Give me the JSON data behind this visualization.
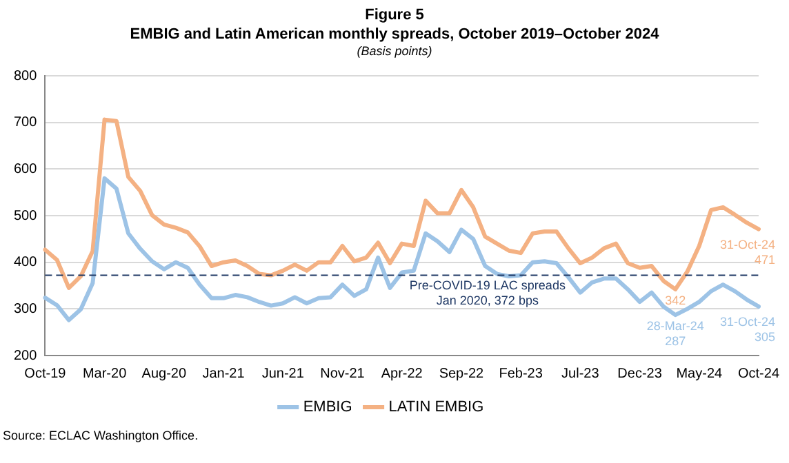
{
  "chart_data": {
    "type": "line",
    "title": "Figure 5\nEMBIG and Latin American monthly spreads, October 2019–October 2024",
    "subtitle": "(Basis points)",
    "categories": [
      "Oct-19",
      null,
      null,
      null,
      null,
      "Mar-20",
      null,
      null,
      null,
      null,
      "Aug-20",
      null,
      null,
      null,
      null,
      "Jan-21",
      null,
      null,
      null,
      null,
      "Jun-21",
      null,
      null,
      null,
      null,
      "Nov-21",
      null,
      null,
      null,
      null,
      "Apr-22",
      null,
      null,
      null,
      null,
      "Sep-22",
      null,
      null,
      null,
      null,
      "Feb-23",
      null,
      null,
      null,
      null,
      "Jul-23",
      null,
      null,
      null,
      null,
      "Dec-23",
      null,
      null,
      null,
      null,
      "May-24",
      null,
      null,
      null,
      null,
      "Oct-24"
    ],
    "series": [
      {
        "name": "EMBIG",
        "color": "#9dc3e6",
        "values": [
          324,
          308,
          276,
          299,
          355,
          580,
          558,
          462,
          429,
          402,
          385,
          400,
          388,
          352,
          323,
          323,
          330,
          325,
          315,
          307,
          312,
          325,
          312,
          323,
          325,
          352,
          328,
          342,
          410,
          345,
          378,
          382,
          462,
          445,
          422,
          470,
          450,
          392,
          375,
          370,
          372,
          400,
          402,
          398,
          368,
          335,
          357,
          365,
          365,
          342,
          315,
          335,
          305,
          287,
          300,
          315,
          338,
          352,
          338,
          320,
          305
        ],
        "value_labels": [
          null,
          null,
          null,
          null,
          null,
          null,
          null,
          null,
          null,
          null,
          null,
          null,
          null,
          null,
          null,
          null,
          null,
          null,
          null,
          null,
          null,
          null,
          null,
          null,
          null,
          null,
          null,
          null,
          null,
          null,
          null,
          null,
          null,
          null,
          null,
          null,
          null,
          null,
          null,
          null,
          null,
          null,
          null,
          null,
          null,
          null,
          null,
          null,
          null,
          null,
          null,
          null,
          null,
          "28-Mar-24\n287",
          null,
          null,
          null,
          null,
          null,
          null,
          "31-Oct-24\n305"
        ]
      },
      {
        "name": "LATIN EMBIG",
        "color": "#f4b183",
        "values": [
          427,
          405,
          345,
          370,
          424,
          706,
          703,
          583,
          553,
          501,
          481,
          474,
          464,
          434,
          392,
          400,
          404,
          392,
          375,
          372,
          382,
          395,
          382,
          400,
          400,
          435,
          402,
          410,
          442,
          398,
          440,
          435,
          532,
          505,
          505,
          555,
          518,
          455,
          440,
          425,
          420,
          462,
          466,
          466,
          430,
          398,
          410,
          430,
          440,
          398,
          388,
          392,
          360,
          342,
          380,
          435,
          512,
          518,
          502,
          485,
          471
        ],
        "value_labels": [
          null,
          null,
          null,
          null,
          null,
          null,
          null,
          null,
          null,
          null,
          null,
          null,
          null,
          null,
          null,
          null,
          null,
          null,
          null,
          null,
          null,
          null,
          null,
          null,
          null,
          null,
          null,
          null,
          null,
          null,
          null,
          null,
          null,
          null,
          null,
          null,
          null,
          null,
          null,
          null,
          null,
          null,
          null,
          null,
          null,
          null,
          null,
          null,
          null,
          null,
          null,
          null,
          null,
          "342",
          null,
          null,
          null,
          null,
          null,
          null,
          "31-Oct-24\n471"
        ]
      }
    ],
    "ylim": [
      200,
      800
    ],
    "yticks": [
      200,
      300,
      400,
      500,
      600,
      700,
      800
    ],
    "grid": "y",
    "legend": "bottom",
    "marker": "none",
    "line_style": "solid",
    "ref_lines": [
      {
        "axis": "y",
        "value": 372,
        "label": "Pre-COVID-19 LAC spreads\nJan 2020, 372 bps",
        "color": "#1f3864",
        "line_style": "dashed"
      }
    ],
    "annotations": [
      "Source: ECLAC Washington Office."
    ]
  }
}
